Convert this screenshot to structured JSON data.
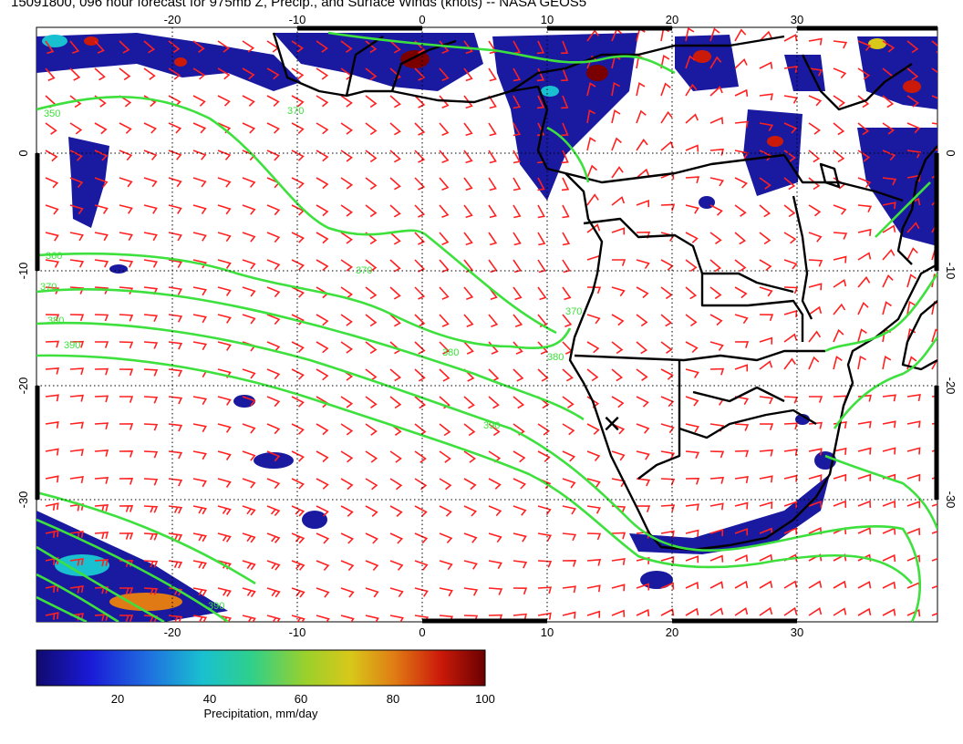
{
  "title": "15091800, 096 hour forecast for 975mb Z, Precip., and Surface Winds (knots) -- NASA GEOS5",
  "map": {
    "lon_ticks": [
      "-20",
      "-10",
      "0",
      "10",
      "20",
      "30"
    ],
    "lat_ticks": [
      "0",
      "-10",
      "-20",
      "-30"
    ],
    "contour_labels": [
      "350",
      "360",
      "370",
      "380",
      "390",
      "370",
      "370",
      "380",
      "390",
      "370",
      "380",
      "390"
    ],
    "marker_symbol": "×",
    "colors": {
      "contour": "#3de03d",
      "wind_barb": "#ff2020",
      "coastline": "#000000",
      "precip_low": "#10108a",
      "precip_high": "#7a0000"
    }
  },
  "colorbar": {
    "title": "Precipitation, mm/day",
    "ticks": [
      "20",
      "40",
      "60",
      "80",
      "100"
    ],
    "range": [
      0,
      100
    ],
    "colors": [
      "#100a6e",
      "#1a1ad6",
      "#1f6fe0",
      "#19c0d0",
      "#2fd08a",
      "#9ad02c",
      "#d8c81a",
      "#e07a14",
      "#cc1a0a",
      "#6a0000"
    ]
  }
}
